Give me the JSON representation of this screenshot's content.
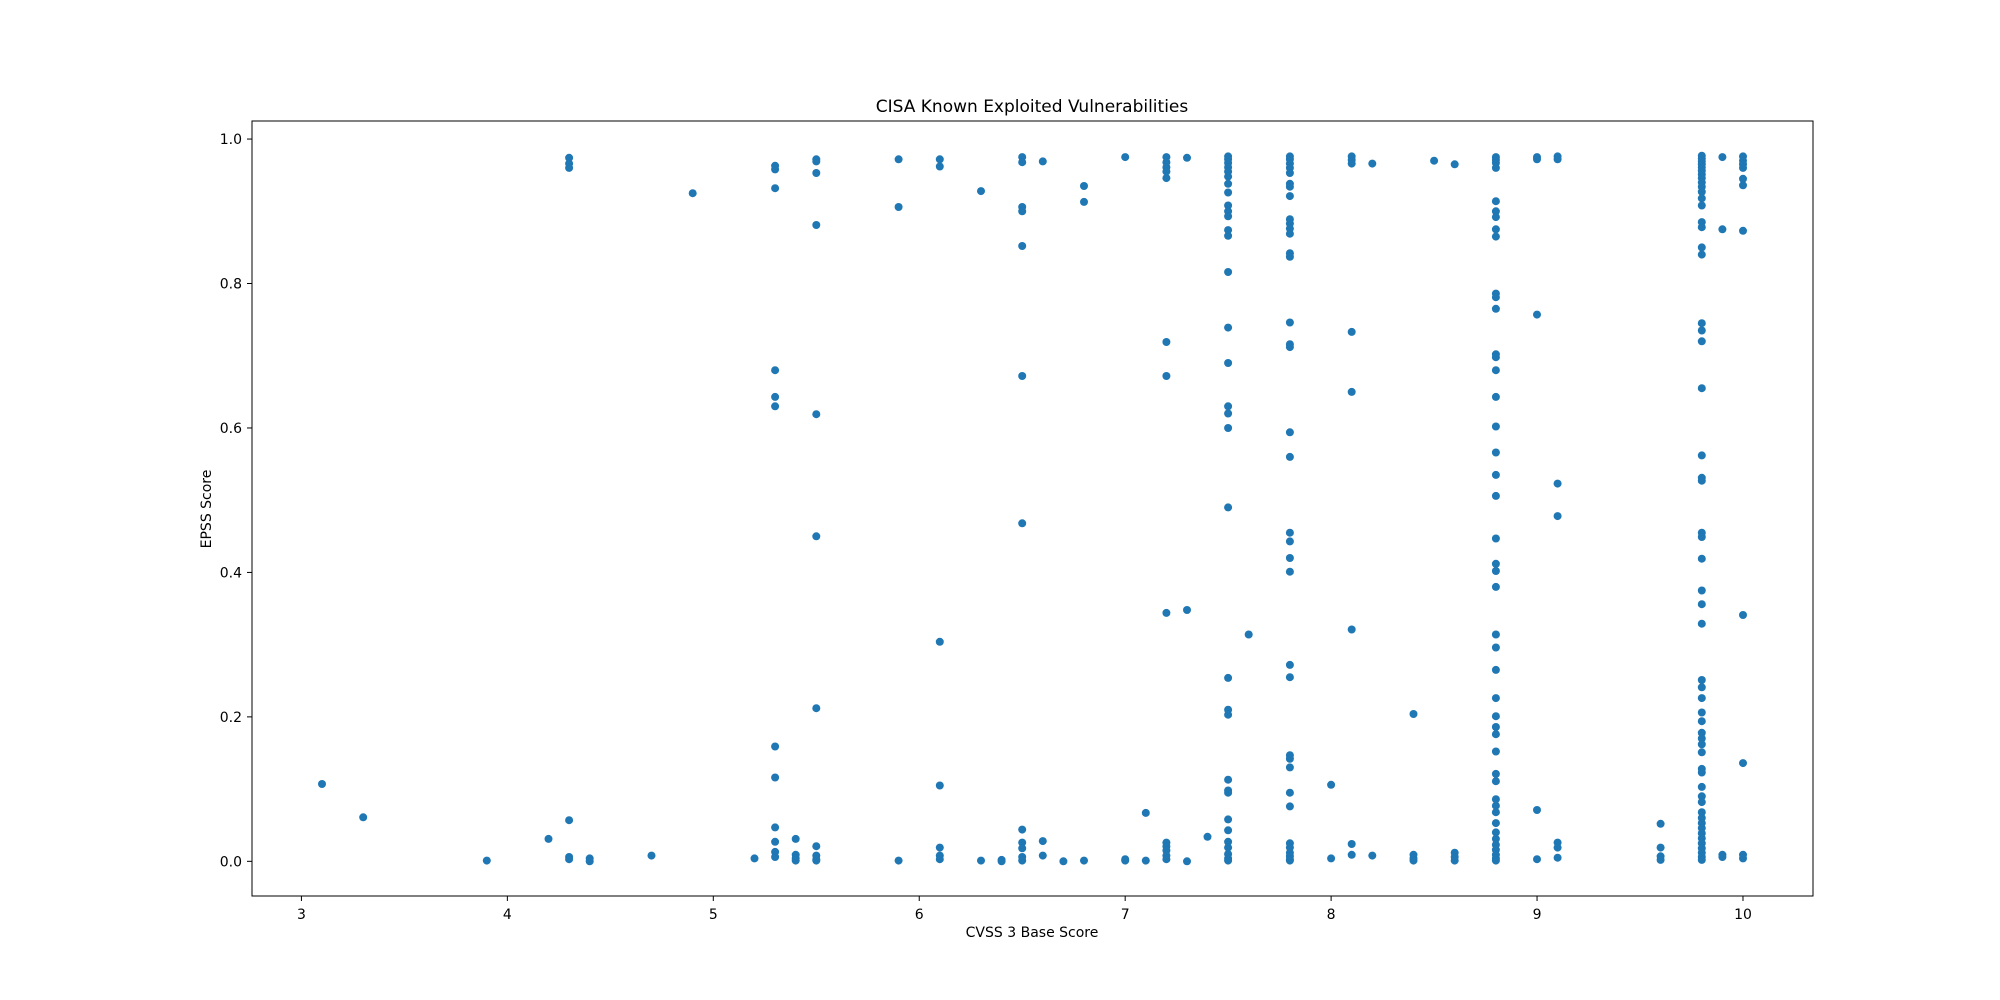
{
  "chart_data": {
    "type": "scatter",
    "title": "CISA Known Exploited Vulnerabilities",
    "xlabel": "CVSS 3 Base Score",
    "ylabel": "EPSS Score",
    "xlim": [
      2.76,
      10.34
    ],
    "ylim": [
      -0.048,
      1.025
    ],
    "x_ticks": [
      3,
      4,
      5,
      6,
      7,
      8,
      9,
      10
    ],
    "x_tick_labels": [
      "3",
      "4",
      "5",
      "6",
      "7",
      "8",
      "9",
      "10"
    ],
    "y_ticks": [
      0.0,
      0.2,
      0.4,
      0.6,
      0.8,
      1.0
    ],
    "y_tick_labels": [
      "0.0",
      "0.2",
      "0.4",
      "0.6",
      "0.8",
      "1.0"
    ],
    "grid": false,
    "legend": "none",
    "marker_color": "#1f77b4",
    "points": [
      [
        3.1,
        0.107
      ],
      [
        3.3,
        0.061
      ],
      [
        3.9,
        0.001
      ],
      [
        4.2,
        0.031
      ],
      [
        4.3,
        0.974
      ],
      [
        4.3,
        0.966
      ],
      [
        4.3,
        0.96
      ],
      [
        4.3,
        0.057
      ],
      [
        4.3,
        0.006
      ],
      [
        4.3,
        0.003
      ],
      [
        4.4,
        0.004
      ],
      [
        4.4,
        0.0
      ],
      [
        4.7,
        0.008
      ],
      [
        4.9,
        0.925
      ],
      [
        5.2,
        0.004
      ],
      [
        5.3,
        0.963
      ],
      [
        5.3,
        0.958
      ],
      [
        5.3,
        0.932
      ],
      [
        5.3,
        0.68
      ],
      [
        5.3,
        0.643
      ],
      [
        5.3,
        0.63
      ],
      [
        5.3,
        0.159
      ],
      [
        5.3,
        0.116
      ],
      [
        5.3,
        0.047
      ],
      [
        5.3,
        0.027
      ],
      [
        5.3,
        0.013
      ],
      [
        5.3,
        0.006
      ],
      [
        5.4,
        0.031
      ],
      [
        5.4,
        0.009
      ],
      [
        5.4,
        0.004
      ],
      [
        5.4,
        0.001
      ],
      [
        5.5,
        0.972
      ],
      [
        5.5,
        0.969
      ],
      [
        5.5,
        0.953
      ],
      [
        5.5,
        0.881
      ],
      [
        5.5,
        0.619
      ],
      [
        5.5,
        0.45
      ],
      [
        5.5,
        0.212
      ],
      [
        5.5,
        0.021
      ],
      [
        5.5,
        0.008
      ],
      [
        5.5,
        0.003
      ],
      [
        5.5,
        0.001
      ],
      [
        5.9,
        0.972
      ],
      [
        5.9,
        0.906
      ],
      [
        5.9,
        0.001
      ],
      [
        6.1,
        0.972
      ],
      [
        6.1,
        0.962
      ],
      [
        6.1,
        0.304
      ],
      [
        6.1,
        0.105
      ],
      [
        6.1,
        0.019
      ],
      [
        6.1,
        0.008
      ],
      [
        6.1,
        0.003
      ],
      [
        6.3,
        0.928
      ],
      [
        6.3,
        0.001
      ],
      [
        6.4,
        0.002
      ],
      [
        6.4,
        0.0
      ],
      [
        6.5,
        0.975
      ],
      [
        6.5,
        0.968
      ],
      [
        6.5,
        0.906
      ],
      [
        6.5,
        0.9
      ],
      [
        6.5,
        0.852
      ],
      [
        6.5,
        0.672
      ],
      [
        6.5,
        0.468
      ],
      [
        6.5,
        0.044
      ],
      [
        6.5,
        0.026
      ],
      [
        6.5,
        0.018
      ],
      [
        6.5,
        0.006
      ],
      [
        6.5,
        0.001
      ],
      [
        6.6,
        0.969
      ],
      [
        6.6,
        0.028
      ],
      [
        6.6,
        0.008
      ],
      [
        6.7,
        0.0
      ],
      [
        6.8,
        0.935
      ],
      [
        6.8,
        0.913
      ],
      [
        6.8,
        0.001
      ],
      [
        7.0,
        0.975
      ],
      [
        7.0,
        0.003
      ],
      [
        7.0,
        0.001
      ],
      [
        7.1,
        0.067
      ],
      [
        7.1,
        0.001
      ],
      [
        7.2,
        0.975
      ],
      [
        7.2,
        0.968
      ],
      [
        7.2,
        0.961
      ],
      [
        7.2,
        0.955
      ],
      [
        7.2,
        0.946
      ],
      [
        7.2,
        0.719
      ],
      [
        7.2,
        0.672
      ],
      [
        7.2,
        0.344
      ],
      [
        7.2,
        0.026
      ],
      [
        7.2,
        0.021
      ],
      [
        7.2,
        0.015
      ],
      [
        7.2,
        0.008
      ],
      [
        7.2,
        0.003
      ],
      [
        7.3,
        0.974
      ],
      [
        7.3,
        0.348
      ],
      [
        7.3,
        0.0
      ],
      [
        7.4,
        0.034
      ],
      [
        7.5,
        0.976
      ],
      [
        7.5,
        0.972
      ],
      [
        7.5,
        0.967
      ],
      [
        7.5,
        0.961
      ],
      [
        7.5,
        0.955
      ],
      [
        7.5,
        0.948
      ],
      [
        7.5,
        0.938
      ],
      [
        7.5,
        0.926
      ],
      [
        7.5,
        0.908
      ],
      [
        7.5,
        0.9
      ],
      [
        7.5,
        0.893
      ],
      [
        7.5,
        0.874
      ],
      [
        7.5,
        0.866
      ],
      [
        7.5,
        0.816
      ],
      [
        7.5,
        0.739
      ],
      [
        7.5,
        0.69
      ],
      [
        7.5,
        0.63
      ],
      [
        7.5,
        0.62
      ],
      [
        7.5,
        0.6
      ],
      [
        7.5,
        0.49
      ],
      [
        7.5,
        0.254
      ],
      [
        7.5,
        0.21
      ],
      [
        7.5,
        0.203
      ],
      [
        7.5,
        0.113
      ],
      [
        7.5,
        0.098
      ],
      [
        7.5,
        0.095
      ],
      [
        7.5,
        0.058
      ],
      [
        7.5,
        0.043
      ],
      [
        7.5,
        0.027
      ],
      [
        7.5,
        0.019
      ],
      [
        7.5,
        0.01
      ],
      [
        7.5,
        0.004
      ],
      [
        7.5,
        0.001
      ],
      [
        7.6,
        0.314
      ],
      [
        7.8,
        0.976
      ],
      [
        7.8,
        0.972
      ],
      [
        7.8,
        0.966
      ],
      [
        7.8,
        0.96
      ],
      [
        7.8,
        0.953
      ],
      [
        7.8,
        0.938
      ],
      [
        7.8,
        0.934
      ],
      [
        7.8,
        0.921
      ],
      [
        7.8,
        0.889
      ],
      [
        7.8,
        0.883
      ],
      [
        7.8,
        0.876
      ],
      [
        7.8,
        0.869
      ],
      [
        7.8,
        0.842
      ],
      [
        7.8,
        0.837
      ],
      [
        7.8,
        0.746
      ],
      [
        7.8,
        0.716
      ],
      [
        7.8,
        0.712
      ],
      [
        7.8,
        0.594
      ],
      [
        7.8,
        0.56
      ],
      [
        7.8,
        0.455
      ],
      [
        7.8,
        0.443
      ],
      [
        7.8,
        0.42
      ],
      [
        7.8,
        0.401
      ],
      [
        7.8,
        0.272
      ],
      [
        7.8,
        0.255
      ],
      [
        7.8,
        0.147
      ],
      [
        7.8,
        0.142
      ],
      [
        7.8,
        0.13
      ],
      [
        7.8,
        0.095
      ],
      [
        7.8,
        0.076
      ],
      [
        7.8,
        0.025
      ],
      [
        7.8,
        0.019
      ],
      [
        7.8,
        0.012
      ],
      [
        7.8,
        0.007
      ],
      [
        7.8,
        0.003
      ],
      [
        7.8,
        0.001
      ],
      [
        8.0,
        0.106
      ],
      [
        8.0,
        0.004
      ],
      [
        8.1,
        0.976
      ],
      [
        8.1,
        0.971
      ],
      [
        8.1,
        0.966
      ],
      [
        8.1,
        0.733
      ],
      [
        8.1,
        0.65
      ],
      [
        8.1,
        0.321
      ],
      [
        8.1,
        0.024
      ],
      [
        8.1,
        0.009
      ],
      [
        8.2,
        0.966
      ],
      [
        8.2,
        0.008
      ],
      [
        8.4,
        0.204
      ],
      [
        8.4,
        0.009
      ],
      [
        8.4,
        0.004
      ],
      [
        8.4,
        0.001
      ],
      [
        8.5,
        0.97
      ],
      [
        8.6,
        0.965
      ],
      [
        8.6,
        0.012
      ],
      [
        8.6,
        0.006
      ],
      [
        8.6,
        0.001
      ],
      [
        8.8,
        0.975
      ],
      [
        8.8,
        0.971
      ],
      [
        8.8,
        0.967
      ],
      [
        8.8,
        0.96
      ],
      [
        8.8,
        0.914
      ],
      [
        8.8,
        0.9
      ],
      [
        8.8,
        0.892
      ],
      [
        8.8,
        0.875
      ],
      [
        8.8,
        0.865
      ],
      [
        8.8,
        0.786
      ],
      [
        8.8,
        0.781
      ],
      [
        8.8,
        0.765
      ],
      [
        8.8,
        0.702
      ],
      [
        8.8,
        0.698
      ],
      [
        8.8,
        0.68
      ],
      [
        8.8,
        0.643
      ],
      [
        8.8,
        0.602
      ],
      [
        8.8,
        0.566
      ],
      [
        8.8,
        0.535
      ],
      [
        8.8,
        0.506
      ],
      [
        8.8,
        0.447
      ],
      [
        8.8,
        0.412
      ],
      [
        8.8,
        0.402
      ],
      [
        8.8,
        0.38
      ],
      [
        8.8,
        0.314
      ],
      [
        8.8,
        0.296
      ],
      [
        8.8,
        0.265
      ],
      [
        8.8,
        0.226
      ],
      [
        8.8,
        0.201
      ],
      [
        8.8,
        0.186
      ],
      [
        8.8,
        0.176
      ],
      [
        8.8,
        0.152
      ],
      [
        8.8,
        0.121
      ],
      [
        8.8,
        0.111
      ],
      [
        8.8,
        0.086
      ],
      [
        8.8,
        0.077
      ],
      [
        8.8,
        0.068
      ],
      [
        8.8,
        0.053
      ],
      [
        8.8,
        0.04
      ],
      [
        8.8,
        0.031
      ],
      [
        8.8,
        0.023
      ],
      [
        8.8,
        0.016
      ],
      [
        8.8,
        0.009
      ],
      [
        8.8,
        0.004
      ],
      [
        8.8,
        0.001
      ],
      [
        9.0,
        0.975
      ],
      [
        9.0,
        0.972
      ],
      [
        9.0,
        0.757
      ],
      [
        9.0,
        0.071
      ],
      [
        9.0,
        0.003
      ],
      [
        9.1,
        0.976
      ],
      [
        9.1,
        0.972
      ],
      [
        9.1,
        0.523
      ],
      [
        9.1,
        0.478
      ],
      [
        9.1,
        0.026
      ],
      [
        9.1,
        0.019
      ],
      [
        9.1,
        0.005
      ],
      [
        9.6,
        0.052
      ],
      [
        9.6,
        0.019
      ],
      [
        9.6,
        0.007
      ],
      [
        9.6,
        0.002
      ],
      [
        9.8,
        0.977
      ],
      [
        9.8,
        0.973
      ],
      [
        9.8,
        0.969
      ],
      [
        9.8,
        0.965
      ],
      [
        9.8,
        0.961
      ],
      [
        9.8,
        0.956
      ],
      [
        9.8,
        0.951
      ],
      [
        9.8,
        0.946
      ],
      [
        9.8,
        0.94
      ],
      [
        9.8,
        0.934
      ],
      [
        9.8,
        0.927
      ],
      [
        9.8,
        0.918
      ],
      [
        9.8,
        0.908
      ],
      [
        9.8,
        0.885
      ],
      [
        9.8,
        0.878
      ],
      [
        9.8,
        0.85
      ],
      [
        9.8,
        0.84
      ],
      [
        9.8,
        0.745
      ],
      [
        9.8,
        0.735
      ],
      [
        9.8,
        0.72
      ],
      [
        9.8,
        0.655
      ],
      [
        9.8,
        0.562
      ],
      [
        9.8,
        0.531
      ],
      [
        9.8,
        0.527
      ],
      [
        9.8,
        0.455
      ],
      [
        9.8,
        0.449
      ],
      [
        9.8,
        0.419
      ],
      [
        9.8,
        0.375
      ],
      [
        9.8,
        0.356
      ],
      [
        9.8,
        0.329
      ],
      [
        9.8,
        0.251
      ],
      [
        9.8,
        0.241
      ],
      [
        9.8,
        0.226
      ],
      [
        9.8,
        0.206
      ],
      [
        9.8,
        0.194
      ],
      [
        9.8,
        0.178
      ],
      [
        9.8,
        0.17
      ],
      [
        9.8,
        0.162
      ],
      [
        9.8,
        0.151
      ],
      [
        9.8,
        0.128
      ],
      [
        9.8,
        0.123
      ],
      [
        9.8,
        0.103
      ],
      [
        9.8,
        0.09
      ],
      [
        9.8,
        0.082
      ],
      [
        9.8,
        0.068
      ],
      [
        9.8,
        0.06
      ],
      [
        9.8,
        0.053
      ],
      [
        9.8,
        0.046
      ],
      [
        9.8,
        0.039
      ],
      [
        9.8,
        0.032
      ],
      [
        9.8,
        0.025
      ],
      [
        9.8,
        0.018
      ],
      [
        9.8,
        0.012
      ],
      [
        9.8,
        0.006
      ],
      [
        9.8,
        0.002
      ],
      [
        9.9,
        0.975
      ],
      [
        9.9,
        0.875
      ],
      [
        9.9,
        0.009
      ],
      [
        9.9,
        0.006
      ],
      [
        10.0,
        0.976
      ],
      [
        10.0,
        0.97
      ],
      [
        10.0,
        0.965
      ],
      [
        10.0,
        0.96
      ],
      [
        10.0,
        0.945
      ],
      [
        10.0,
        0.936
      ],
      [
        10.0,
        0.873
      ],
      [
        10.0,
        0.341
      ],
      [
        10.0,
        0.136
      ],
      [
        10.0,
        0.009
      ],
      [
        10.0,
        0.004
      ]
    ]
  }
}
